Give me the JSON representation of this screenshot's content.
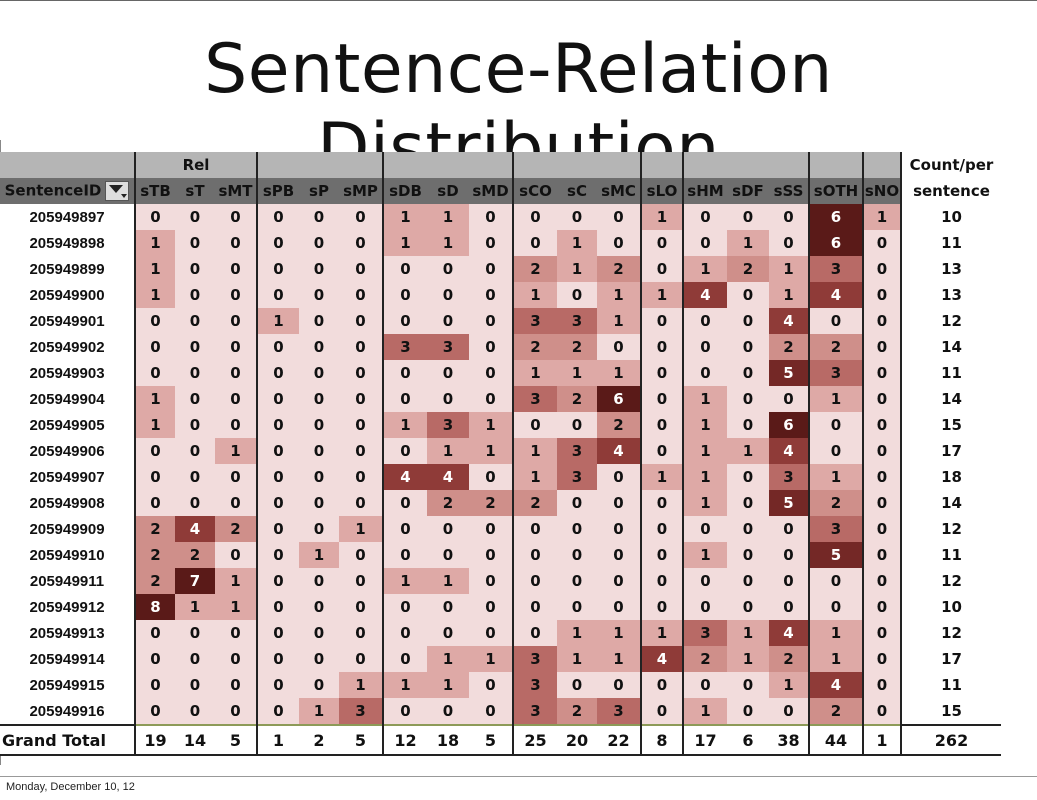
{
  "slide": {
    "title": "Sentence-Relation Distribution",
    "footer": "Monday, December 10, 12"
  },
  "table": {
    "group_label": "Rel",
    "id_header": "SentenceID",
    "count_header_line1": "Count/per",
    "count_header_line2": "sentence",
    "total_label": "Grand Total",
    "columns": [
      "sTB",
      "sT",
      "sMT",
      "sPB",
      "sP",
      "sMP",
      "sDB",
      "sD",
      "sMD",
      "sCO",
      "sC",
      "sMC",
      "sLO",
      "sHM",
      "sDF",
      "sSS",
      "sOTH",
      "sNO"
    ],
    "column_groups": [
      3,
      3,
      3,
      3,
      1,
      3,
      1,
      1
    ],
    "rows": [
      {
        "id": "205949897",
        "values": [
          0,
          0,
          0,
          0,
          0,
          0,
          1,
          1,
          0,
          0,
          0,
          0,
          1,
          0,
          0,
          0,
          6,
          1
        ],
        "count": "10"
      },
      {
        "id": "205949898",
        "values": [
          1,
          0,
          0,
          0,
          0,
          0,
          1,
          1,
          0,
          0,
          1,
          0,
          0,
          0,
          1,
          0,
          6,
          0
        ],
        "count": "11"
      },
      {
        "id": "205949899",
        "values": [
          1,
          0,
          0,
          0,
          0,
          0,
          0,
          0,
          0,
          2,
          1,
          2,
          0,
          1,
          2,
          1,
          3,
          0
        ],
        "count": "13"
      },
      {
        "id": "205949900",
        "values": [
          1,
          0,
          0,
          0,
          0,
          0,
          0,
          0,
          0,
          1,
          0,
          1,
          1,
          4,
          0,
          1,
          4,
          0
        ],
        "count": "13"
      },
      {
        "id": "205949901",
        "values": [
          0,
          0,
          0,
          1,
          0,
          0,
          0,
          0,
          0,
          3,
          3,
          1,
          0,
          0,
          0,
          4,
          0,
          0
        ],
        "count": "12"
      },
      {
        "id": "205949902",
        "values": [
          0,
          0,
          0,
          0,
          0,
          0,
          3,
          3,
          0,
          2,
          2,
          0,
          0,
          0,
          0,
          2,
          2,
          0
        ],
        "count": "14"
      },
      {
        "id": "205949903",
        "values": [
          0,
          0,
          0,
          0,
          0,
          0,
          0,
          0,
          0,
          1,
          1,
          1,
          0,
          0,
          0,
          5,
          3,
          0
        ],
        "count": "11"
      },
      {
        "id": "205949904",
        "values": [
          1,
          0,
          0,
          0,
          0,
          0,
          0,
          0,
          0,
          3,
          2,
          6,
          0,
          1,
          0,
          0,
          1,
          0
        ],
        "count": "14"
      },
      {
        "id": "205949905",
        "values": [
          1,
          0,
          0,
          0,
          0,
          0,
          1,
          3,
          1,
          0,
          0,
          2,
          0,
          1,
          0,
          6,
          0,
          0
        ],
        "count": "15"
      },
      {
        "id": "205949906",
        "values": [
          0,
          0,
          1,
          0,
          0,
          0,
          0,
          1,
          1,
          1,
          3,
          4,
          0,
          1,
          1,
          4,
          0,
          0
        ],
        "count": "17"
      },
      {
        "id": "205949907",
        "values": [
          0,
          0,
          0,
          0,
          0,
          0,
          4,
          4,
          0,
          1,
          3,
          0,
          1,
          1,
          0,
          3,
          1,
          0
        ],
        "count": "18"
      },
      {
        "id": "205949908",
        "values": [
          0,
          0,
          0,
          0,
          0,
          0,
          0,
          2,
          2,
          2,
          0,
          0,
          0,
          1,
          0,
          5,
          2,
          0
        ],
        "count": "14"
      },
      {
        "id": "205949909",
        "values": [
          2,
          4,
          2,
          0,
          0,
          1,
          0,
          0,
          0,
          0,
          0,
          0,
          0,
          0,
          0,
          0,
          3,
          0
        ],
        "count": "12"
      },
      {
        "id": "205949910",
        "values": [
          2,
          2,
          0,
          0,
          1,
          0,
          0,
          0,
          0,
          0,
          0,
          0,
          0,
          1,
          0,
          0,
          5,
          0
        ],
        "count": "11"
      },
      {
        "id": "205949911",
        "values": [
          2,
          7,
          1,
          0,
          0,
          0,
          1,
          1,
          0,
          0,
          0,
          0,
          0,
          0,
          0,
          0,
          0,
          0
        ],
        "count": "12"
      },
      {
        "id": "205949912",
        "values": [
          8,
          1,
          1,
          0,
          0,
          0,
          0,
          0,
          0,
          0,
          0,
          0,
          0,
          0,
          0,
          0,
          0,
          0
        ],
        "count": "10"
      },
      {
        "id": "205949913",
        "values": [
          0,
          0,
          0,
          0,
          0,
          0,
          0,
          0,
          0,
          0,
          1,
          1,
          1,
          3,
          1,
          4,
          1,
          0
        ],
        "count": "12"
      },
      {
        "id": "205949914",
        "values": [
          0,
          0,
          0,
          0,
          0,
          0,
          0,
          1,
          1,
          3,
          1,
          1,
          4,
          2,
          1,
          2,
          1,
          0
        ],
        "count": "17"
      },
      {
        "id": "205949915",
        "values": [
          0,
          0,
          0,
          0,
          0,
          1,
          1,
          1,
          0,
          3,
          0,
          0,
          0,
          0,
          0,
          1,
          4,
          0
        ],
        "count": "11"
      },
      {
        "id": "205949916",
        "values": [
          0,
          0,
          0,
          0,
          1,
          3,
          0,
          0,
          0,
          3,
          2,
          3,
          0,
          1,
          0,
          0,
          2,
          0
        ],
        "count": "15"
      }
    ],
    "totals": [
      19,
      14,
      5,
      1,
      2,
      5,
      12,
      18,
      5,
      25,
      20,
      22,
      8,
      17,
      6,
      38,
      44,
      1
    ],
    "grand_total": "262"
  }
}
